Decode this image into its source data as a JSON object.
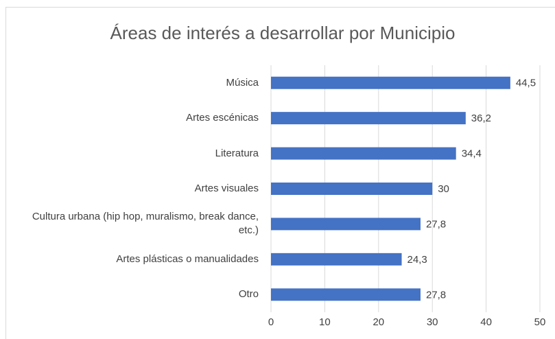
{
  "chart_data": {
    "type": "bar",
    "orientation": "horizontal",
    "title": "Áreas de interés a desarrollar por Municipio",
    "categories": [
      "Música",
      "Artes escénicas",
      "Literatura",
      "Artes visuales",
      "Cultura urbana (hip hop, muralismo, break dance, etc.)",
      "Artes plásticas o manualidades",
      "Otro"
    ],
    "values": [
      44.5,
      36.2,
      34.4,
      30,
      27.8,
      24.3,
      27.8
    ],
    "value_labels": [
      "44,5",
      "36,2",
      "34,4",
      "30",
      "27,8",
      "24,3",
      "27,8"
    ],
    "color": "#4472c4",
    "xlim": [
      0,
      50
    ],
    "xticks": [
      0,
      10,
      20,
      30,
      40,
      50
    ],
    "grid": true
  }
}
